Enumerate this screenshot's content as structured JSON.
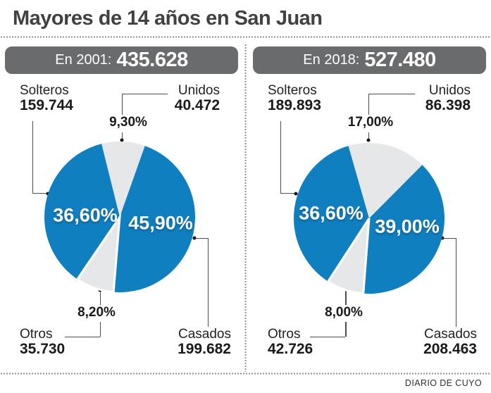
{
  "title": "Mayores de 14 años en San Juan",
  "footer": {
    "credit": "DIARIO DE CUYO"
  },
  "colors": {
    "blue": "#107fc0",
    "gray_slice": "#e6e7e8",
    "bar_gray": "#6a6b6d"
  },
  "panels": [
    {
      "year_label": "En 2001:",
      "total": "435.628",
      "solteros": {
        "label": "Solteros",
        "value": "159.744",
        "pct": "36,60%"
      },
      "unidos": {
        "label": "Unidos",
        "value": "40.472",
        "pct": "9,30%"
      },
      "casados": {
        "label": "Casados",
        "value": "199.682",
        "pct": "45,90%"
      },
      "otros": {
        "label": "Otros",
        "value": "35.730",
        "pct": "8,20%"
      }
    },
    {
      "year_label": "En 2018:",
      "total": "527.480",
      "solteros": {
        "label": "Solteros",
        "value": "189.893",
        "pct": "36,60%"
      },
      "unidos": {
        "label": "Unidos",
        "value": "86.398",
        "pct": "17,00%"
      },
      "casados": {
        "label": "Casados",
        "value": "208.463",
        "pct": "39,00%"
      },
      "otros": {
        "label": "Otros",
        "value": "42.726",
        "pct": "8,00%"
      }
    }
  ],
  "chart_data": [
    {
      "type": "pie",
      "title": "En 2001: 435.628",
      "total": 435628,
      "start_angle_deg": -14,
      "slices": [
        {
          "label": "Unidos",
          "count": 40472,
          "percent": 9.3,
          "color": "#e6e7e8",
          "separated": false
        },
        {
          "label": "Casados",
          "count": 199682,
          "percent": 45.9,
          "color": "#107fc0",
          "separated": false
        },
        {
          "label": "Otros",
          "count": 35730,
          "percent": 8.2,
          "color": "#e6e7e8",
          "separated": true
        },
        {
          "label": "Solteros",
          "count": 159744,
          "percent": 36.6,
          "color": "#107fc0",
          "separated": false
        }
      ]
    },
    {
      "type": "pie",
      "title": "En 2018: 527.480",
      "total": 527480,
      "start_angle_deg": -16,
      "slices": [
        {
          "label": "Unidos",
          "count": 86398,
          "percent": 17.0,
          "color": "#e6e7e8",
          "separated": false
        },
        {
          "label": "Casados",
          "count": 208463,
          "percent": 39.0,
          "color": "#107fc0",
          "separated": false
        },
        {
          "label": "Otros",
          "count": 42726,
          "percent": 8.0,
          "color": "#e6e7e8",
          "separated": true
        },
        {
          "label": "Solteros",
          "count": 189893,
          "percent": 36.6,
          "color": "#107fc0",
          "separated": false
        }
      ]
    }
  ]
}
